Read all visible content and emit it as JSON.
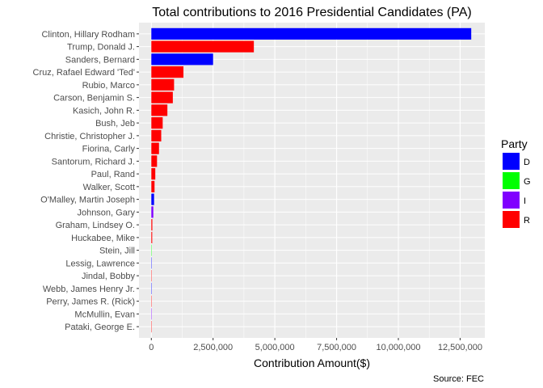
{
  "chart_data": {
    "type": "bar",
    "orientation": "horizontal",
    "title": "Total contributions to 2016 Presidential Candidates (PA)",
    "xlabel": "Contribution Amount($)",
    "ylabel": "",
    "caption": "Source: FEC",
    "xlim": [
      -500000,
      13500000
    ],
    "x_ticks": [
      0,
      2500000,
      5000000,
      7500000,
      10000000,
      12500000
    ],
    "x_tick_labels": [
      "0",
      "2,500,000",
      "5,000,000",
      "7,500,000",
      "10,000,000",
      "12,500,000"
    ],
    "grid": true,
    "legend": {
      "title": "Party",
      "position": "right",
      "entries": [
        {
          "label": "D",
          "color": "#0000ff"
        },
        {
          "label": "G",
          "color": "#00ff00"
        },
        {
          "label": "I",
          "color": "#8000ff"
        },
        {
          "label": "R",
          "color": "#ff0000"
        }
      ]
    },
    "bars": [
      {
        "category": "Clinton, Hillary Rodham",
        "value": 12950000,
        "party": "D"
      },
      {
        "category": "Trump, Donald J.",
        "value": 4150000,
        "party": "R"
      },
      {
        "category": "Sanders, Bernard",
        "value": 2500000,
        "party": "D"
      },
      {
        "category": "Cruz, Rafael Edward 'Ted'",
        "value": 1300000,
        "party": "R"
      },
      {
        "category": "Rubio, Marco",
        "value": 920000,
        "party": "R"
      },
      {
        "category": "Carson, Benjamin S.",
        "value": 870000,
        "party": "R"
      },
      {
        "category": "Kasich, John R.",
        "value": 650000,
        "party": "R"
      },
      {
        "category": "Bush, Jeb",
        "value": 460000,
        "party": "R"
      },
      {
        "category": "Christie, Christopher J.",
        "value": 400000,
        "party": "R"
      },
      {
        "category": "Fiorina, Carly",
        "value": 310000,
        "party": "R"
      },
      {
        "category": "Santorum, Richard J.",
        "value": 230000,
        "party": "R"
      },
      {
        "category": "Paul, Rand",
        "value": 160000,
        "party": "R"
      },
      {
        "category": "Walker, Scott",
        "value": 130000,
        "party": "R"
      },
      {
        "category": "O'Malley, Martin Joseph",
        "value": 110000,
        "party": "D"
      },
      {
        "category": "Johnson, Gary",
        "value": 80000,
        "party": "I"
      },
      {
        "category": "Graham, Lindsey O.",
        "value": 40000,
        "party": "R"
      },
      {
        "category": "Huckabee, Mike",
        "value": 35000,
        "party": "R"
      },
      {
        "category": "Stein, Jill",
        "value": 10000,
        "party": "G"
      },
      {
        "category": "Lessig, Lawrence",
        "value": 9000,
        "party": "D"
      },
      {
        "category": "Jindal, Bobby",
        "value": 6000,
        "party": "R"
      },
      {
        "category": "Webb, James Henry Jr.",
        "value": 5000,
        "party": "D"
      },
      {
        "category": "Perry, James R. (Rick)",
        "value": 4000,
        "party": "R"
      },
      {
        "category": "McMullin, Evan",
        "value": 3000,
        "party": "I"
      },
      {
        "category": "Pataki, George E.",
        "value": 2000,
        "party": "R"
      }
    ]
  }
}
